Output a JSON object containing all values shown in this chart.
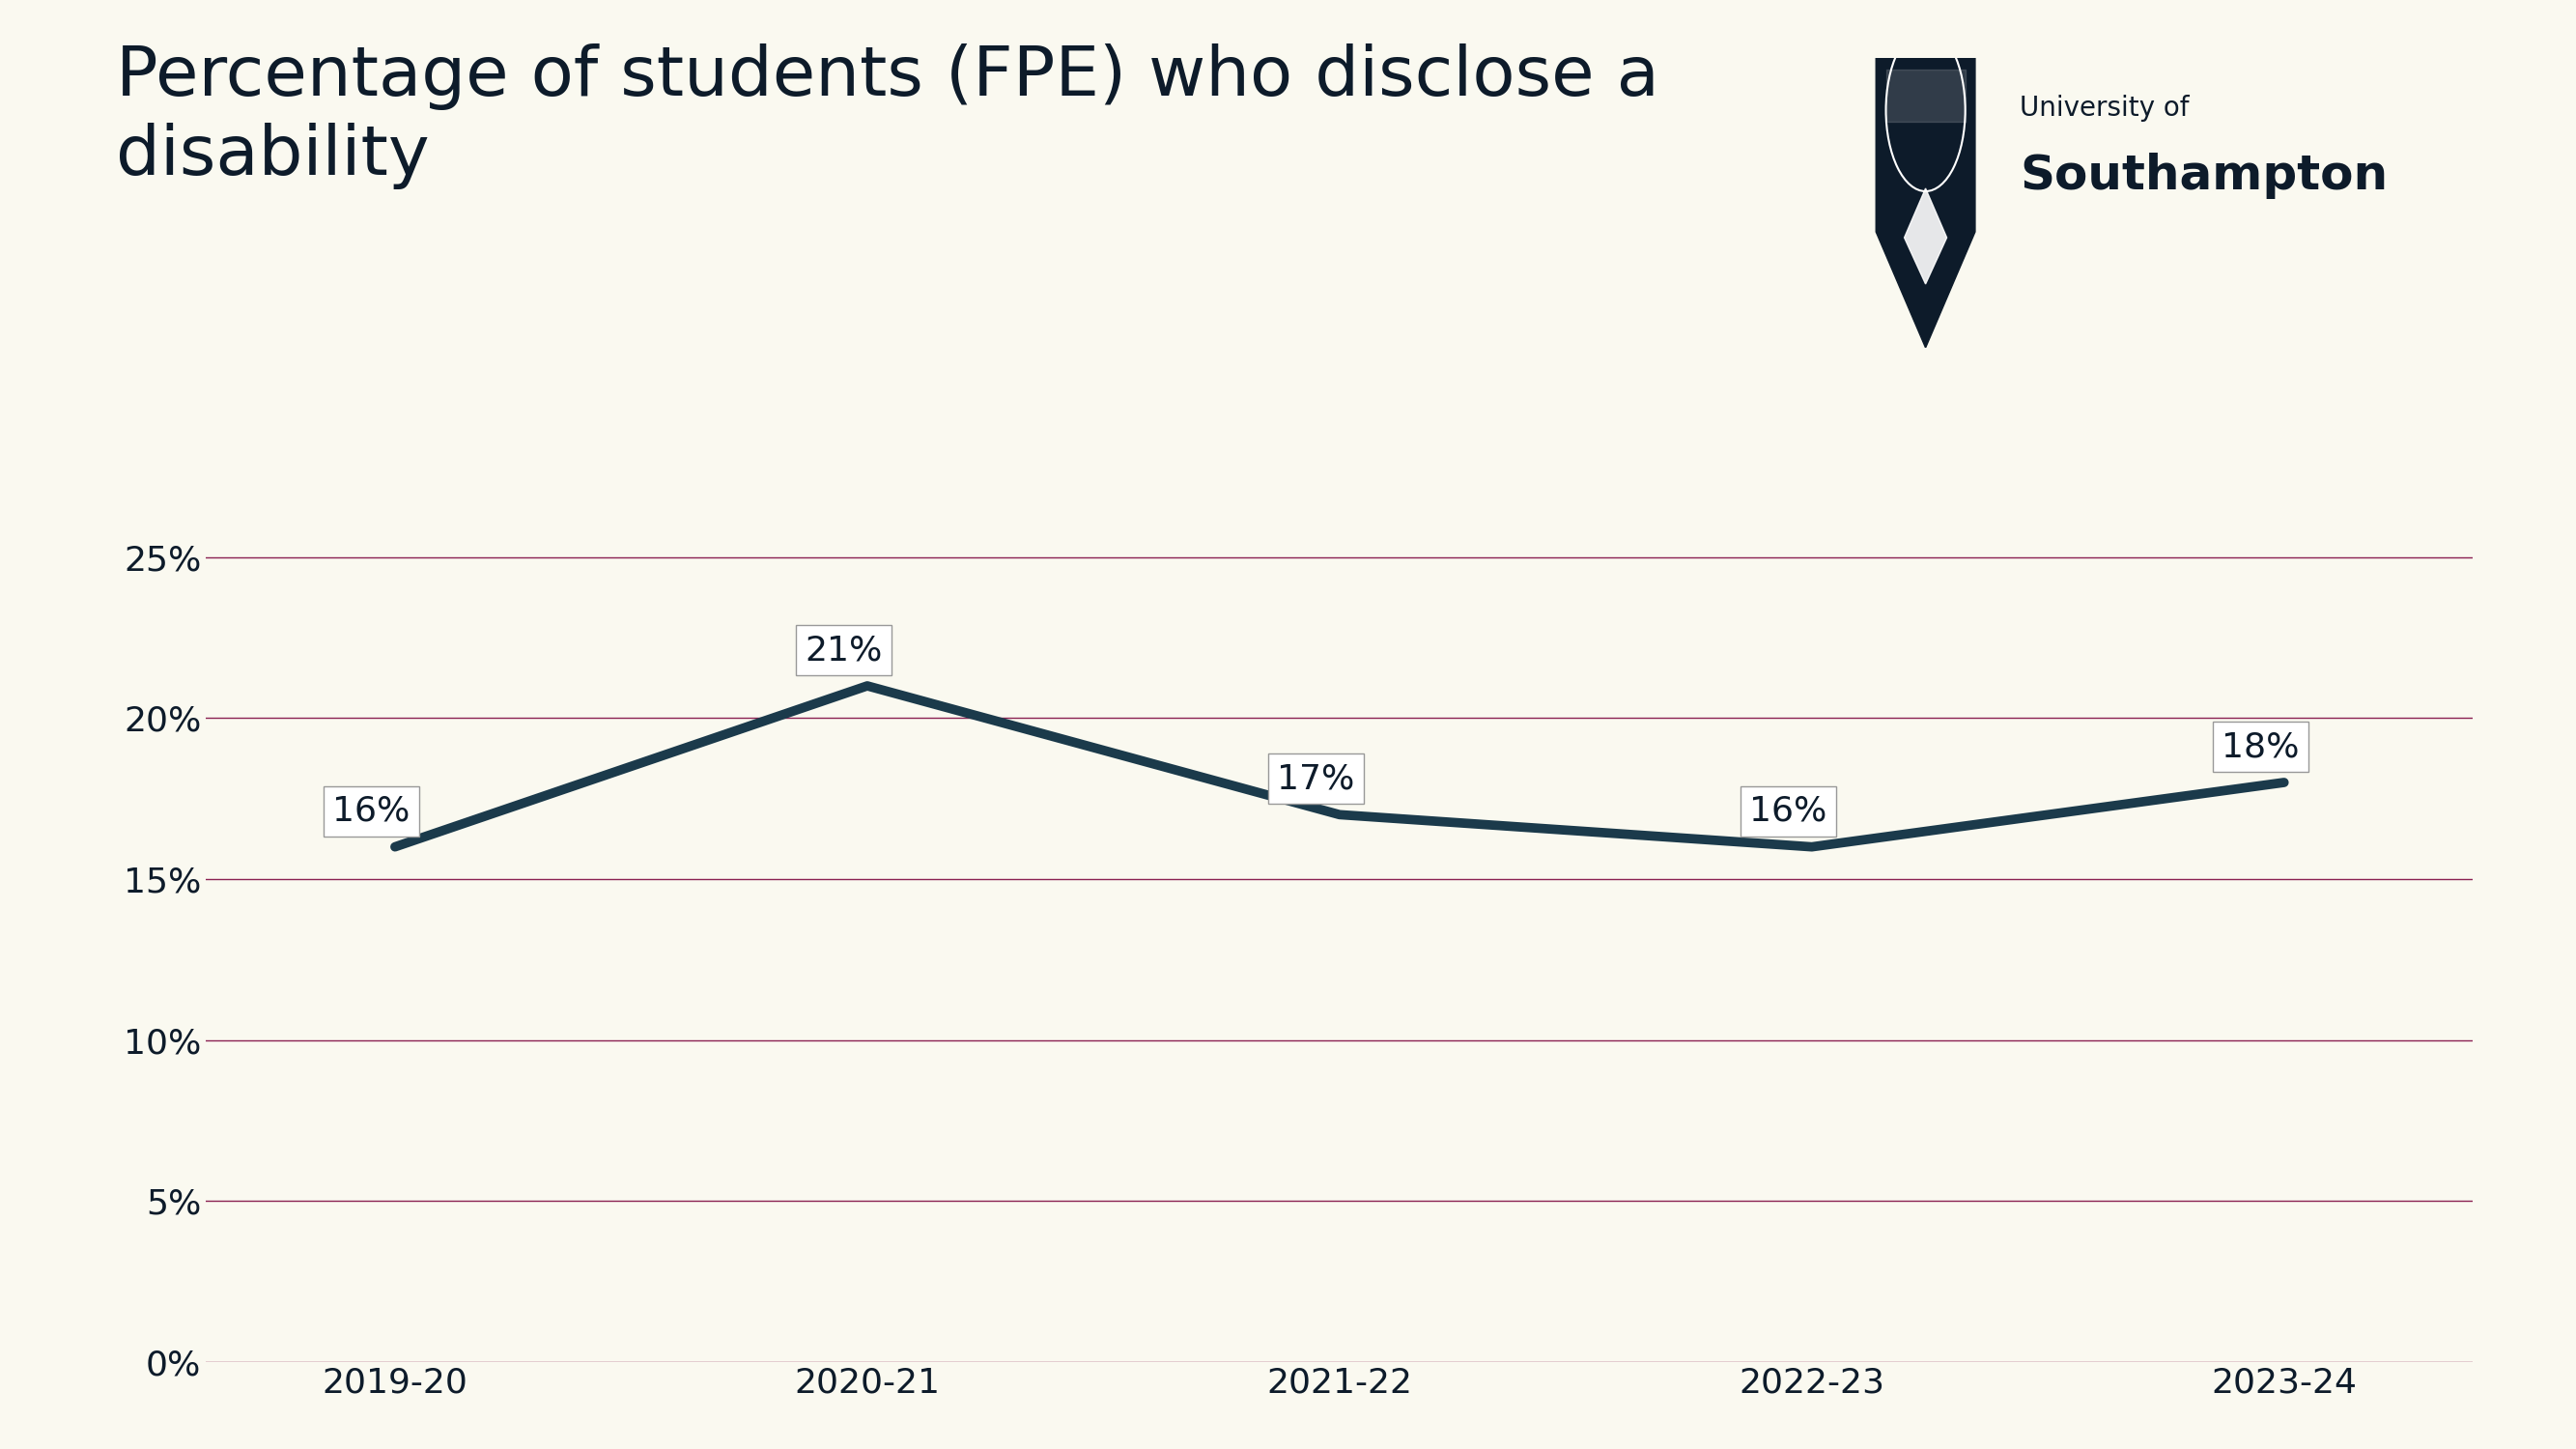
{
  "title_line1": "Percentage of students (FPE) who disclose a",
  "title_line2": "disability",
  "categories": [
    "2019-20",
    "2020-21",
    "2021-22",
    "2022-23",
    "2023-24"
  ],
  "values": [
    16,
    21,
    17,
    16,
    18
  ],
  "line_color": "#1b3a4b",
  "grid_color": "#8b2252",
  "background_color": "#faf9f0",
  "title_color": "#0d1b2a",
  "tick_color": "#0d1b2a",
  "ylim": [
    0,
    27
  ],
  "yticks": [
    0,
    5,
    10,
    15,
    20,
    25
  ],
  "line_width": 7.0,
  "annotation_fontsize": 26,
  "tick_fontsize": 26,
  "title_fontsize": 52,
  "xlabel_fontsize": 26,
  "logo_text_small": "University of",
  "logo_text_large": "Southampton"
}
